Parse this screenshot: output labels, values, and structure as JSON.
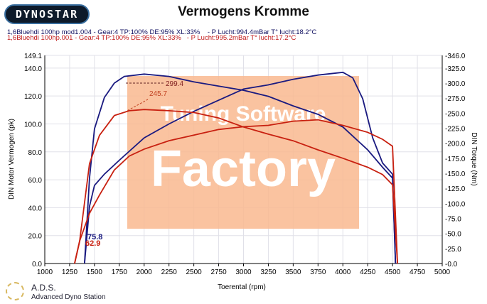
{
  "header": {
    "logo": "DYNOSTAR",
    "title": "Vermogens Kromme",
    "run1": "1,6Bluehdi 100hp mod1.004 - Gear:4 TP:100% DE:95% XL:33%    - P Lucht:994.4mBar T° lucht:18.2°C",
    "run2": "1,6Bluehdi 100hp.001 - Gear:4 TP:100% DE:95% XL:33%   - P Lucht:995.2mBar T° lucht:17.2°C"
  },
  "footer": {
    "brand": "A.D.S.",
    "subtitle": "Advanced Dyno Station"
  },
  "watermark": {
    "line1": "Tuning Software",
    "line2": "Factory"
  },
  "chart_data": {
    "type": "line",
    "title": "Vermogens Kromme",
    "xlabel": "Toerental (rpm)",
    "ylabel": "DIN Motor Vermogen (pk)",
    "y2label": "DIN Torque (Nm)",
    "xlim": [
      1000,
      5000
    ],
    "ylim": [
      0,
      149.1
    ],
    "y2lim": [
      0,
      346
    ],
    "xticks": [
      1000,
      1250,
      1500,
      1750,
      2000,
      2250,
      2500,
      2750,
      3000,
      3250,
      3500,
      3750,
      4000,
      4250,
      4500,
      4750,
      5000
    ],
    "yticks": [
      "0.0",
      "20.0",
      "40.0",
      "60.0",
      "80.0",
      "100.0",
      "120.0",
      "140.0",
      "149.1"
    ],
    "yticks_vals": [
      0,
      20,
      40,
      60,
      80,
      100,
      120,
      140,
      149.1
    ],
    "y2ticks": [
      "-0.0",
      "-25.0",
      "-50.0",
      "-75.0",
      "-100.0",
      "-125.0",
      "-150.0",
      "-175.0",
      "-200.0",
      "-225.0",
      "-250.0",
      "-275.0",
      "-300.0",
      "-325.0",
      "-346.0"
    ],
    "y2ticks_vals": [
      0,
      25,
      50,
      75,
      100,
      125,
      150,
      175,
      200,
      225,
      250,
      275,
      300,
      325,
      346
    ],
    "grid": true,
    "series": [
      {
        "name": "mod1.004 power",
        "axis": "left",
        "color": "#1a1a80",
        "x": [
          1400,
          1450,
          1500,
          1600,
          1750,
          2000,
          2250,
          2500,
          2750,
          3000,
          3250,
          3500,
          3750,
          4000,
          4100,
          4200,
          4300,
          4400,
          4500,
          4530
        ],
        "y": [
          0,
          41,
          56,
          64,
          74,
          90,
          100,
          109,
          117,
          125,
          128,
          132,
          135,
          137,
          133,
          118,
          90,
          72,
          64,
          0
        ]
      },
      {
        "name": "mod1.004 torque",
        "axis": "right",
        "color": "#1a1a80",
        "x": [
          1400,
          1450,
          1500,
          1600,
          1700,
          1800,
          2000,
          2250,
          2500,
          2750,
          3000,
          3250,
          3500,
          3750,
          4000,
          4250,
          4400,
          4500,
          4530
        ],
        "y": [
          0,
          142,
          224,
          276,
          300,
          311,
          315,
          311,
          302,
          295,
          288,
          278,
          262,
          248,
          227,
          189,
          160,
          142,
          0
        ]
      },
      {
        "name": "001 power",
        "axis": "left",
        "color": "#c82010",
        "x": [
          1300,
          1350,
          1450,
          1550,
          1700,
          1850,
          2000,
          2250,
          2500,
          2750,
          3000,
          3250,
          3500,
          3750,
          4000,
          4250,
          4400,
          4500,
          4550
        ],
        "y": [
          0,
          16,
          36,
          49,
          67,
          77,
          82,
          88,
          92,
          96,
          98,
          99,
          102,
          103,
          99,
          94,
          89,
          84,
          0
        ]
      },
      {
        "name": "001 torque",
        "axis": "right",
        "color": "#c82010",
        "x": [
          1300,
          1350,
          1450,
          1550,
          1700,
          1850,
          2000,
          2250,
          2500,
          2750,
          3000,
          3250,
          3500,
          3750,
          4000,
          4250,
          4400,
          4500,
          4550
        ],
        "y": [
          0,
          36,
          166,
          213,
          246,
          254,
          256,
          254,
          251,
          242,
          227,
          215,
          204,
          189,
          175,
          160,
          148,
          131,
          0
        ]
      }
    ],
    "annotations": [
      {
        "text": "299.4",
        "color": "#802020"
      },
      {
        "text": "245.7",
        "color": "#c04020"
      },
      {
        "text": "75.8",
        "color": "#1a1a80"
      },
      {
        "text": "62.9",
        "color": "#c82010"
      }
    ]
  }
}
